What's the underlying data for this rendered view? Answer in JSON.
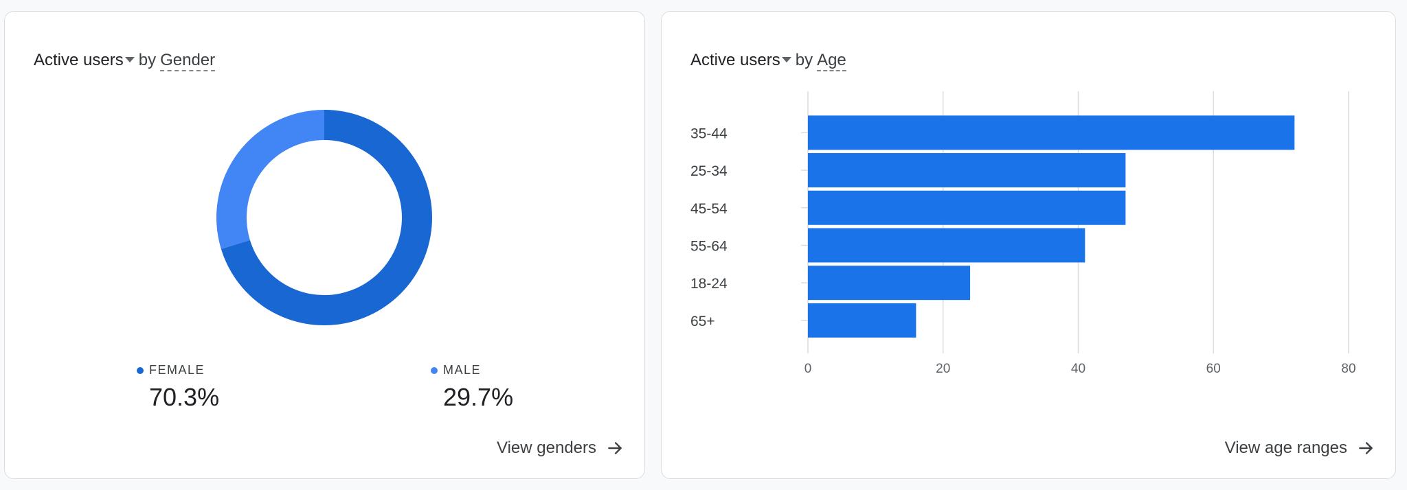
{
  "gender_card": {
    "metric": "Active users",
    "by": "by",
    "dimension": "Gender",
    "link": "View genders"
  },
  "age_card": {
    "metric": "Active users",
    "by": "by",
    "dimension": "Age",
    "link": "View age ranges"
  },
  "colors": {
    "female": "#1967d2",
    "male": "#4285f4",
    "bar": "#1a73e8",
    "grid": "#dadce0"
  },
  "chart_data": [
    {
      "type": "pie",
      "title": "",
      "categories": [
        "FEMALE",
        "MALE"
      ],
      "values": [
        70.3,
        29.7
      ],
      "value_labels": [
        "70.3%",
        "29.7%"
      ],
      "legend_position": "bottom"
    },
    {
      "type": "bar",
      "orientation": "horizontal",
      "title": "",
      "categories": [
        "35-44",
        "25-34",
        "45-54",
        "55-64",
        "18-24",
        "65+"
      ],
      "values": [
        72,
        47,
        47,
        41,
        24,
        16
      ],
      "xlim": [
        0,
        80
      ],
      "xticks": [
        0,
        20,
        40,
        60,
        80
      ],
      "grid": true
    }
  ]
}
